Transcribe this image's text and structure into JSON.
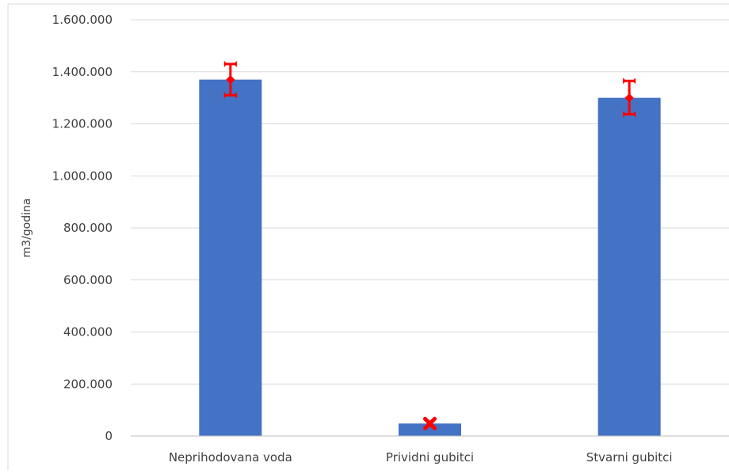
{
  "chart_data": {
    "type": "bar",
    "title": "",
    "xlabel": "",
    "ylabel": "m3/godina",
    "categories": [
      "Neprihodovana voda",
      "Prividni gubitci",
      "Stvarni gubitci"
    ],
    "values": [
      1370000,
      48000,
      1300000
    ],
    "error_bars": [
      {
        "low": 1310000,
        "mid": 1370000,
        "high": 1430000
      },
      {
        "low": 45000,
        "mid": 48000,
        "high": 52000
      },
      {
        "low": 1237000,
        "mid": 1300000,
        "high": 1365000
      }
    ],
    "ylim": [
      0,
      1600000
    ],
    "yticks": [
      0,
      200000,
      400000,
      600000,
      800000,
      1000000,
      1200000,
      1400000,
      1600000
    ],
    "ytick_labels": [
      "0",
      "200.000",
      "400.000",
      "600.000",
      "800.000",
      "1.000.000",
      "1.200.000",
      "1.400.000",
      "1.600.000"
    ],
    "grid": true,
    "legend": "none",
    "colors": {
      "bar": "#4472C4",
      "error": "#FF0000",
      "grid": "#D9D9D9",
      "axis": "#BFBFBF"
    }
  }
}
